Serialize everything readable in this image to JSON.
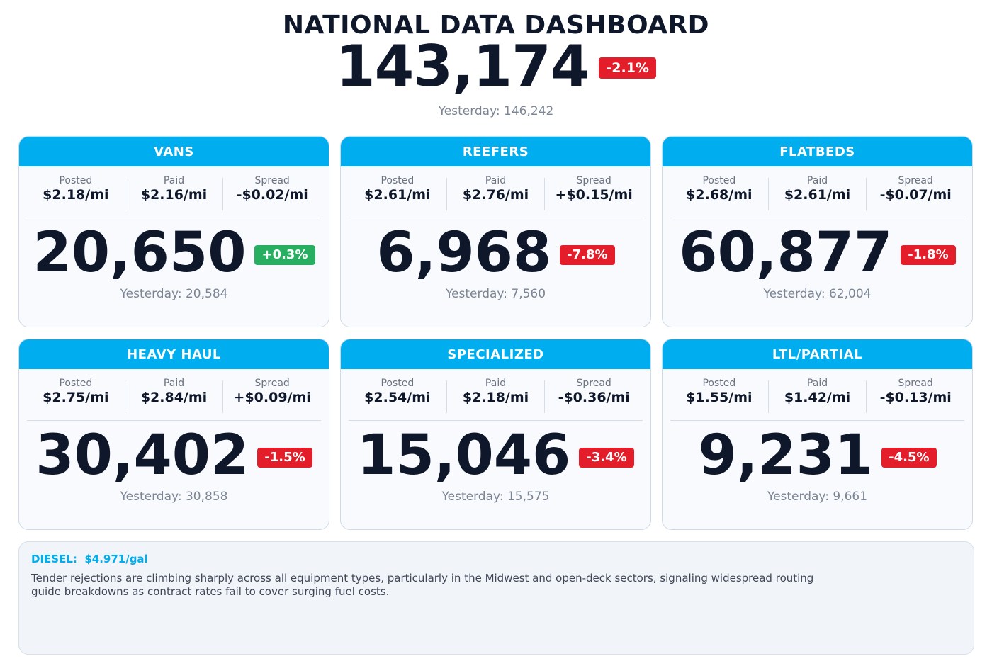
{
  "header": {
    "title": "NATIONAL DATA DASHBOARD",
    "total_value": "143,174",
    "total_change": "-2.1%",
    "total_change_direction": "down",
    "yesterday": "Yesterday: 146,242"
  },
  "colors": {
    "accent": "#00aeef",
    "positive": "#27ae60",
    "negative": "#e31e2a",
    "text_dark": "#0f172a",
    "text_muted": "#7b8594"
  },
  "labels": {
    "posted": "Posted",
    "paid": "Paid",
    "spread": "Spread"
  },
  "cards": [
    {
      "title": "VANS",
      "posted": "$2.18/mi",
      "paid": "$2.16/mi",
      "spread": "-$0.02/mi",
      "value": "20,650",
      "change": "+0.3%",
      "change_direction": "up",
      "yesterday": "Yesterday: 20,584"
    },
    {
      "title": "REEFERS",
      "posted": "$2.61/mi",
      "paid": "$2.76/mi",
      "spread": "+$0.15/mi",
      "value": "6,968",
      "change": "-7.8%",
      "change_direction": "down",
      "yesterday": "Yesterday: 7,560"
    },
    {
      "title": "FLATBEDS",
      "posted": "$2.68/mi",
      "paid": "$2.61/mi",
      "spread": "-$0.07/mi",
      "value": "60,877",
      "change": "-1.8%",
      "change_direction": "down",
      "yesterday": "Yesterday: 62,004"
    },
    {
      "title": "HEAVY HAUL",
      "posted": "$2.75/mi",
      "paid": "$2.84/mi",
      "spread": "+$0.09/mi",
      "value": "30,402",
      "change": "-1.5%",
      "change_direction": "down",
      "yesterday": "Yesterday: 30,858"
    },
    {
      "title": "SPECIALIZED",
      "posted": "$2.54/mi",
      "paid": "$2.18/mi",
      "spread": "-$0.36/mi",
      "value": "15,046",
      "change": "-3.4%",
      "change_direction": "down",
      "yesterday": "Yesterday: 15,575"
    },
    {
      "title": "LTL/PARTIAL",
      "posted": "$1.55/mi",
      "paid": "$1.42/mi",
      "spread": "-$0.13/mi",
      "value": "9,231",
      "change": "-4.5%",
      "change_direction": "down",
      "yesterday": "Yesterday: 9,661"
    }
  ],
  "footer": {
    "diesel": "DIESEL:  $4.971/gal",
    "commentary": "Tender rejections are climbing sharply across all equipment types, particularly in the Midwest and open-deck sectors, signaling widespread routing guide breakdowns as contract rates fail to cover surging fuel costs."
  }
}
